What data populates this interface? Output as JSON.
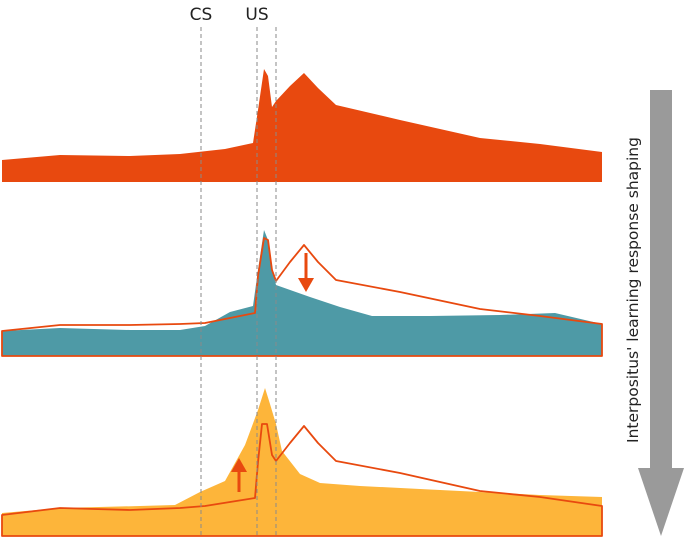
{
  "labels": {
    "cs": "CS",
    "us": "US",
    "side_title": "Interpositus' learning response shaping"
  },
  "colors": {
    "red": "#E8490F",
    "teal": "#4E9AA6",
    "orange": "#FDB53A",
    "guide": "#8a8a8a",
    "arrow": "#9a9a9a",
    "text": "#222222"
  },
  "panels": [
    {
      "name": "baseline-response",
      "fill_key": "red",
      "has_outline": false,
      "change_arrow": "none"
    },
    {
      "name": "reduced-response",
      "fill_key": "teal",
      "has_outline": true,
      "change_arrow": "down"
    },
    {
      "name": "enhanced-response",
      "fill_key": "orange",
      "has_outline": true,
      "change_arrow": "up"
    }
  ],
  "icons": {
    "big_arrow": "down-arrow-icon",
    "down_change": "down-arrow-icon",
    "up_change": "up-arrow-icon"
  }
}
